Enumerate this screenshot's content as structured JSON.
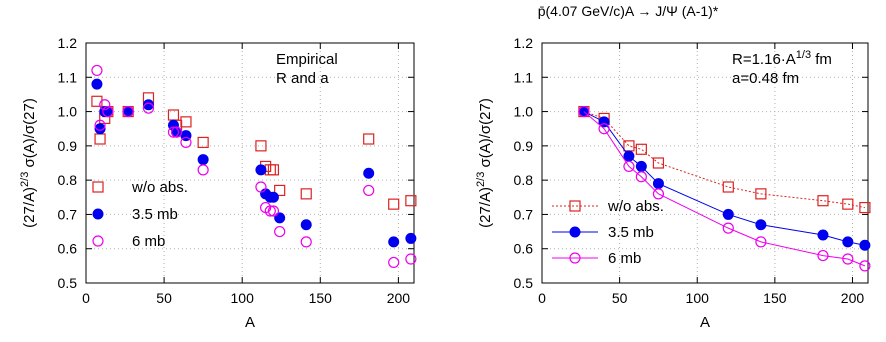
{
  "figure_title": "p̄(4.07 GeV/c)A → J/Ψ (A-1)*",
  "colors": {
    "wo_abs": "#dd2222",
    "mb35": "#0000ee",
    "mb6": "#ee00ee"
  },
  "chart_data": [
    {
      "type": "scatter",
      "panel": "left",
      "xlabel": "A",
      "ylabel": "(27/A)^2/3 σ(A)/σ(27)",
      "xlim": [
        0,
        210
      ],
      "ylim": [
        0.5,
        1.2
      ],
      "xticks": [
        0,
        50,
        100,
        150,
        200
      ],
      "yticks": [
        0.5,
        0.6,
        0.7,
        0.8,
        0.9,
        1.0,
        1.1,
        1.2
      ],
      "annotation": [
        "Empirical",
        "R and a"
      ],
      "legend_position": "bottom-left",
      "series": [
        {
          "name": "w/o abs.",
          "marker": "open-square",
          "color": "#dd2222",
          "x": [
            7,
            9,
            12,
            14,
            27,
            40,
            56,
            58,
            64,
            75,
            112,
            115,
            118,
            120,
            124,
            141,
            181,
            197,
            208
          ],
          "y": [
            1.03,
            0.92,
            0.98,
            1.0,
            1.0,
            1.04,
            0.99,
            0.96,
            0.97,
            0.91,
            0.9,
            0.84,
            0.83,
            0.83,
            0.77,
            0.76,
            0.92,
            0.73,
            0.74
          ]
        },
        {
          "name": "3.5 mb",
          "marker": "filled-circle",
          "color": "#0000ee",
          "x": [
            7,
            9,
            12,
            14,
            27,
            40,
            56,
            58,
            64,
            75,
            112,
            115,
            118,
            120,
            124,
            141,
            181,
            197,
            208
          ],
          "y": [
            1.08,
            0.95,
            1.0,
            1.0,
            1.0,
            1.02,
            0.96,
            0.94,
            0.93,
            0.86,
            0.83,
            0.76,
            0.75,
            0.75,
            0.69,
            0.67,
            0.82,
            0.62,
            0.63
          ]
        },
        {
          "name": "6 mb",
          "marker": "open-circle",
          "color": "#ee00ee",
          "x": [
            7,
            9,
            12,
            14,
            27,
            40,
            56,
            58,
            64,
            75,
            112,
            115,
            118,
            120,
            124,
            141,
            181,
            197,
            208
          ],
          "y": [
            1.12,
            0.96,
            1.02,
            1.0,
            1.0,
            1.01,
            0.94,
            0.94,
            0.91,
            0.83,
            0.78,
            0.72,
            0.71,
            0.71,
            0.65,
            0.62,
            0.77,
            0.56,
            0.57
          ]
        }
      ]
    },
    {
      "type": "line",
      "panel": "right",
      "xlabel": "A",
      "ylabel": "(27/A)^2/3 σ(A)/σ(27)",
      "xlim": [
        0,
        210
      ],
      "ylim": [
        0.5,
        1.2
      ],
      "xticks": [
        0,
        50,
        100,
        150,
        200
      ],
      "yticks": [
        0.5,
        0.6,
        0.7,
        0.8,
        0.9,
        1.0,
        1.1,
        1.2
      ],
      "annotation": [
        "R=1.16·A^1/3 fm",
        "a=0.48 fm"
      ],
      "legend_position": "bottom-left",
      "series": [
        {
          "name": "w/o abs.",
          "marker": "open-square",
          "line": "dotted",
          "color": "#dd2222",
          "x": [
            27,
            40,
            56,
            64,
            75,
            120,
            141,
            181,
            197,
            208
          ],
          "y": [
            1.0,
            0.98,
            0.9,
            0.89,
            0.85,
            0.78,
            0.76,
            0.74,
            0.73,
            0.72
          ]
        },
        {
          "name": "3.5 mb",
          "marker": "filled-circle",
          "line": "solid",
          "color": "#0000ee",
          "x": [
            27,
            40,
            56,
            64,
            75,
            120,
            141,
            181,
            197,
            208
          ],
          "y": [
            1.0,
            0.97,
            0.87,
            0.84,
            0.79,
            0.7,
            0.67,
            0.64,
            0.62,
            0.61
          ]
        },
        {
          "name": "6 mb",
          "marker": "open-circle",
          "line": "solid",
          "color": "#ee00ee",
          "x": [
            27,
            40,
            56,
            64,
            75,
            120,
            141,
            181,
            197,
            208
          ],
          "y": [
            1.0,
            0.95,
            0.84,
            0.81,
            0.76,
            0.66,
            0.62,
            0.58,
            0.57,
            0.55
          ]
        }
      ]
    }
  ]
}
